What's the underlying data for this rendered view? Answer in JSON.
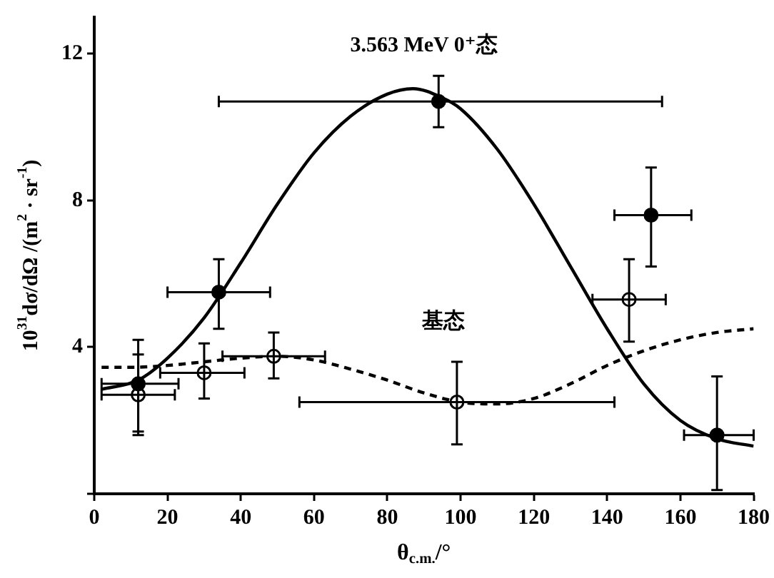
{
  "chart_data": {
    "type": "scatter",
    "xlabel": "θ$_{c.m.}$/°",
    "ylabel": "10$^{31}$dσ/dΩ /(m$^{2}$ · sr$^{-1}$)",
    "xlim": [
      0,
      180
    ],
    "ylim": [
      0,
      13
    ],
    "xticks": [
      0,
      20,
      40,
      60,
      80,
      100,
      120,
      140,
      160,
      180
    ],
    "yticks": [
      {
        "value": 0,
        "label": null
      },
      4,
      8,
      12
    ],
    "grid": false,
    "legend": false,
    "annotations": [
      "3.563 MeV 0⁺态",
      "基态"
    ],
    "series": [
      {
        "type": "line",
        "color": "#000000",
        "marker": "none",
        "line_style": "solid",
        "x": [
          2,
          12,
          20,
          30,
          40,
          50,
          60,
          70,
          80,
          87,
          95,
          100,
          110,
          120,
          130,
          140,
          150,
          160,
          170,
          180
        ],
        "values": [
          2.85,
          3.1,
          3.7,
          4.8,
          6.3,
          7.9,
          9.3,
          10.3,
          10.9,
          11.05,
          10.8,
          10.5,
          9.4,
          7.9,
          6.2,
          4.5,
          3.0,
          2.0,
          1.5,
          1.3
        ]
      },
      {
        "type": "line",
        "color": "#000000",
        "marker": "none",
        "line_style": "dashed",
        "x": [
          2,
          10,
          20,
          30,
          40,
          50,
          60,
          70,
          80,
          90,
          100,
          110,
          120,
          130,
          140,
          150,
          160,
          170,
          180
        ],
        "values": [
          3.45,
          3.45,
          3.5,
          3.6,
          3.7,
          3.75,
          3.65,
          3.4,
          3.1,
          2.75,
          2.5,
          2.45,
          2.6,
          3.0,
          3.5,
          3.9,
          4.2,
          4.4,
          4.5
        ]
      },
      {
        "type": "scatter",
        "color": "#000000",
        "marker": "circle",
        "x": [
          12,
          34,
          94,
          152,
          170
        ],
        "values": [
          3.0,
          5.5,
          10.7,
          7.6,
          1.6
        ],
        "errors": [
          [
            1.7,
            4.2
          ],
          [
            4.5,
            6.4
          ],
          [
            10.0,
            11.4
          ],
          [
            6.2,
            8.9
          ],
          [
            0.1,
            3.2
          ]
        ],
        "xerrors": [
          [
            2,
            23
          ],
          [
            20,
            48
          ],
          [
            34,
            155
          ],
          [
            142,
            163
          ],
          [
            161,
            180
          ]
        ]
      },
      {
        "type": "scatter",
        "color": "#ffffff",
        "marker": "circle",
        "x": [
          12,
          30,
          49,
          99,
          146
        ],
        "values": [
          2.7,
          3.3,
          3.75,
          2.5,
          5.3
        ],
        "errors": [
          [
            1.6,
            3.8
          ],
          [
            2.6,
            4.1
          ],
          [
            3.15,
            4.4
          ],
          [
            1.35,
            3.6
          ],
          [
            4.15,
            6.4
          ]
        ],
        "xerrors": [
          [
            2,
            22
          ],
          [
            18,
            41
          ],
          [
            35,
            63
          ],
          [
            56,
            142
          ],
          [
            136,
            156
          ]
        ]
      }
    ]
  }
}
